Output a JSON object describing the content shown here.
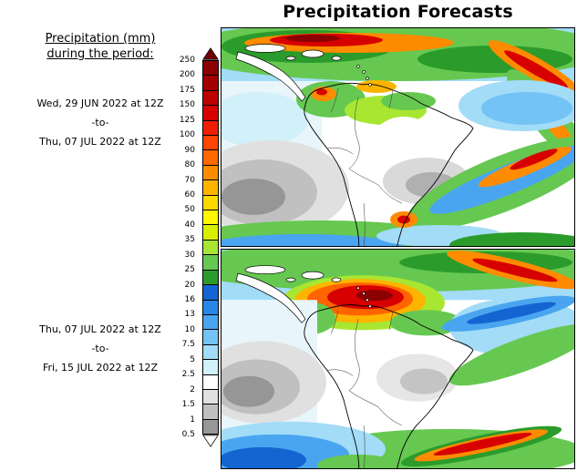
{
  "title": "Precipitation Forecasts",
  "sidebar": {
    "heading_line1": "Precipitation (mm)",
    "heading_line2": "during the period:",
    "periods": [
      {
        "start": "Wed, 29 JUN 2022 at 12Z",
        "separator": "-to-",
        "end": "Thu, 07 JUL 2022 at 12Z"
      },
      {
        "start": "Thu, 07 JUL 2022 at 12Z",
        "separator": "-to-",
        "end": "Fri, 15 JUL 2022 at 12Z"
      }
    ]
  },
  "legend": {
    "values": [
      "250",
      "200",
      "175",
      "150",
      "125",
      "100",
      "90",
      "80",
      "70",
      "60",
      "50",
      "40",
      "35",
      "30",
      "25",
      "20",
      "16",
      "13",
      "10",
      "7.5",
      "5",
      "2.5",
      "2",
      "1.5",
      "1",
      "0.5"
    ],
    "band_colors": [
      "#8b0000",
      "#a30000",
      "#bc0000",
      "#d70000",
      "#f01e00",
      "#ff4400",
      "#ff6900",
      "#ff8c00",
      "#ffb400",
      "#ffd800",
      "#fff600",
      "#d8f000",
      "#a8e632",
      "#66c850",
      "#2b9b2b",
      "#1464d2",
      "#2787e8",
      "#4aa5f0",
      "#73c3f5",
      "#a2dcf7",
      "#d1f0fa",
      "#ffffff",
      "#e0e0e0",
      "#c0c0c0",
      "#989898"
    ],
    "arrow_up_color": "#6e0000",
    "arrow_down_color": "#ffffff"
  }
}
